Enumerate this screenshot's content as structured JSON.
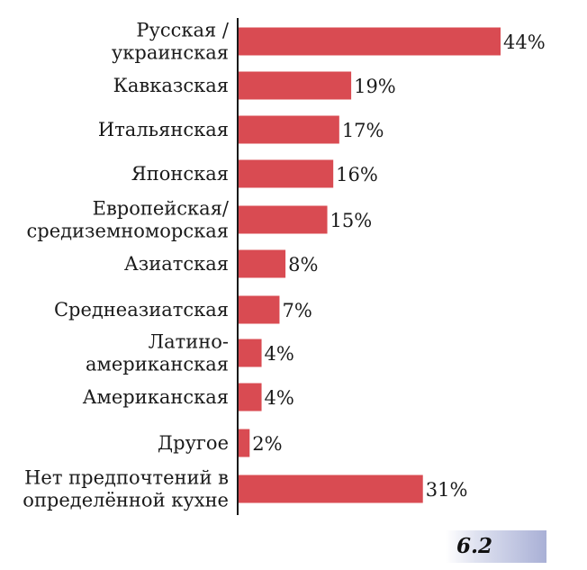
{
  "chart_data": {
    "type": "bar",
    "orientation": "horizontal",
    "categories": [
      [
        "Русская /",
        "украинская"
      ],
      [
        "Кавказская"
      ],
      [
        "Итальянская"
      ],
      [
        "Японская"
      ],
      [
        "Европейская/",
        "средиземноморская"
      ],
      [
        "Азиатская"
      ],
      [
        "Среднеазиатская"
      ],
      [
        "Латино-",
        "американская"
      ],
      [
        "Американская"
      ],
      [
        "Другое"
      ],
      [
        "Нет предпочтений в",
        "определённой кухне"
      ]
    ],
    "values": [
      44,
      19,
      17,
      16,
      15,
      8,
      7,
      4,
      4,
      2,
      31
    ],
    "value_labels": [
      "44%",
      "19%",
      "17%",
      "16%",
      "15%",
      "8%",
      "7%",
      "4%",
      "4%",
      "2%",
      "31%"
    ],
    "xlim": [
      0,
      44
    ],
    "bar_color": "#d94b52",
    "grid": false,
    "legend": "none"
  },
  "figure": {
    "number": "6.2"
  }
}
